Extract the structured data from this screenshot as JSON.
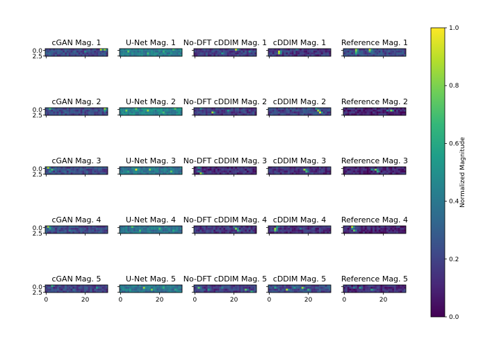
{
  "chart_data": {
    "type": "heatmap",
    "layout": {
      "rows": 5,
      "cols": 5
    },
    "models": [
      "cGAN",
      "U-Net",
      "No-DFT cDDIM",
      "cDDIM",
      "Reference"
    ],
    "subplot_titles": [
      [
        "cGAN Mag. 1",
        "U-Net Mag. 1",
        "No-DFT cDDIM Mag. 1",
        "cDDIM Mag. 1",
        "Reference Mag. 1"
      ],
      [
        "cGAN Mag. 2",
        "U-Net Mag. 2",
        "No-DFT cDDIM Mag. 2",
        "cDDIM Mag. 2",
        "Reference Mag. 2"
      ],
      [
        "cGAN Mag. 3",
        "U-Net Mag. 3",
        "No-DFT cDDIM Mag. 3",
        "cDDIM Mag. 3",
        "Reference Mag. 3"
      ],
      [
        "cGAN Mag. 4",
        "U-Net Mag. 4",
        "No-DFT cDDIM Mag. 4",
        "cDDIM Mag. 4",
        "Reference Mag. 4"
      ],
      [
        "cGAN Mag. 5",
        "U-Net Mag. 5",
        "No-DFT cDDIM Mag. 5",
        "cDDIM Mag. 5",
        "Reference Mag. 5"
      ]
    ],
    "grid_shape": {
      "rows": 4,
      "cols": 32
    },
    "xlim": [
      0,
      32
    ],
    "x_ticks": [
      "0",
      "20"
    ],
    "y_ticks": [
      "0.0",
      "2.5"
    ],
    "colorbar": {
      "label": "Normalized Magnitude",
      "range": [
        0.0,
        1.0
      ],
      "ticks": [
        "0.0",
        "0.2",
        "0.4",
        "0.6",
        "0.8",
        "1.0"
      ],
      "colormap": "viridis"
    },
    "base_level": [
      [
        0.22,
        0.42,
        0.18,
        0.16,
        0.22
      ],
      [
        0.22,
        0.45,
        0.17,
        0.2,
        0.1
      ],
      [
        0.22,
        0.38,
        0.12,
        0.15,
        0.09
      ],
      [
        0.22,
        0.38,
        0.15,
        0.14,
        0.09
      ],
      [
        0.2,
        0.38,
        0.18,
        0.22,
        0.12
      ]
    ],
    "hotspots": [
      [
        [
          [
            28,
            0,
            0.92
          ],
          [
            30,
            0,
            0.85
          ],
          [
            20,
            1,
            0.5
          ]
        ],
        [
          [
            4,
            1,
            0.75
          ],
          [
            14,
            2,
            0.7
          ],
          [
            22,
            1,
            0.65
          ],
          [
            27,
            0,
            0.7
          ]
        ],
        [
          [
            21,
            0,
            0.95
          ],
          [
            14,
            2,
            0.55
          ],
          [
            28,
            1,
            0.5
          ]
        ],
        [
          [
            5,
            1,
            0.9
          ],
          [
            5,
            2,
            0.85
          ],
          [
            14,
            0,
            0.45
          ]
        ],
        [
          [
            6,
            0,
            0.85
          ],
          [
            6,
            1,
            0.75
          ],
          [
            13,
            0,
            0.9
          ],
          [
            13,
            1,
            0.7
          ],
          [
            6,
            2,
            0.6
          ]
        ]
      ],
      [
        [
          [
            2,
            0,
            0.7
          ],
          [
            30,
            0,
            0.85
          ],
          [
            30,
            1,
            0.6
          ]
        ],
        [
          [
            3,
            1,
            0.8
          ],
          [
            8,
            0,
            0.75
          ],
          [
            14,
            1,
            0.85
          ],
          [
            22,
            2,
            0.7
          ],
          [
            28,
            0,
            0.75
          ]
        ],
        [
          [
            9,
            2,
            0.85
          ],
          [
            17,
            1,
            0.55
          ],
          [
            3,
            0,
            0.5
          ]
        ],
        [
          [
            25,
            1,
            0.85
          ],
          [
            26,
            2,
            0.95
          ],
          [
            24,
            0,
            0.55
          ]
        ],
        [
          [
            24,
            1,
            0.8
          ],
          [
            22,
            1,
            0.45
          ]
        ]
      ],
      [
        [
          [
            1,
            0,
            0.9
          ],
          [
            3,
            1,
            0.7
          ],
          [
            2,
            2,
            0.55
          ]
        ],
        [
          [
            8,
            1,
            0.95
          ],
          [
            15,
            1,
            0.8
          ],
          [
            26,
            2,
            0.75
          ],
          [
            4,
            2,
            0.6
          ]
        ],
        [
          [
            2,
            0,
            0.55
          ],
          [
            3,
            3,
            0.85
          ],
          [
            2,
            2,
            0.5
          ]
        ],
        [
          [
            18,
            1,
            0.85
          ],
          [
            19,
            2,
            0.7
          ]
        ],
        [
          [
            16,
            1,
            0.8
          ],
          [
            17,
            2,
            0.65
          ],
          [
            14,
            1,
            0.5
          ]
        ]
      ],
      [
        [
          [
            1,
            0,
            0.85
          ],
          [
            2,
            1,
            0.6
          ],
          [
            12,
            2,
            0.45
          ]
        ],
        [
          [
            6,
            0,
            0.75
          ],
          [
            10,
            2,
            0.7
          ],
          [
            20,
            1,
            0.7
          ],
          [
            27,
            2,
            0.6
          ]
        ],
        [
          [
            21,
            1,
            0.8
          ],
          [
            22,
            2,
            0.65
          ],
          [
            20,
            0,
            0.45
          ]
        ],
        [
          [
            3,
            1,
            0.85
          ],
          [
            3,
            2,
            0.75
          ],
          [
            4,
            0,
            0.55
          ],
          [
            16,
            1,
            0.4
          ]
        ],
        [
          [
            4,
            0,
            0.9
          ],
          [
            5,
            2,
            0.75
          ],
          [
            4,
            1,
            0.5
          ]
        ]
      ],
      [
        [
          [
            3,
            0,
            0.65
          ],
          [
            26,
            1,
            0.55
          ],
          [
            14,
            2,
            0.4
          ]
        ],
        [
          [
            12,
            1,
            0.85
          ],
          [
            16,
            2,
            0.8
          ],
          [
            22,
            1,
            0.65
          ],
          [
            28,
            2,
            0.6
          ],
          [
            5,
            2,
            0.55
          ]
        ],
        [
          [
            2,
            1,
            0.75
          ],
          [
            7,
            2,
            0.55
          ],
          [
            26,
            2,
            0.75
          ],
          [
            29,
            3,
            0.65
          ],
          [
            14,
            1,
            0.45
          ]
        ],
        [
          [
            9,
            2,
            0.9
          ],
          [
            17,
            1,
            0.85
          ],
          [
            20,
            2,
            0.65
          ],
          [
            13,
            1,
            0.55
          ],
          [
            3,
            1,
            0.6
          ]
        ],
        [
          [
            8,
            1,
            0.6
          ],
          [
            14,
            2,
            0.6
          ],
          [
            5,
            1,
            0.45
          ]
        ]
      ]
    ]
  }
}
